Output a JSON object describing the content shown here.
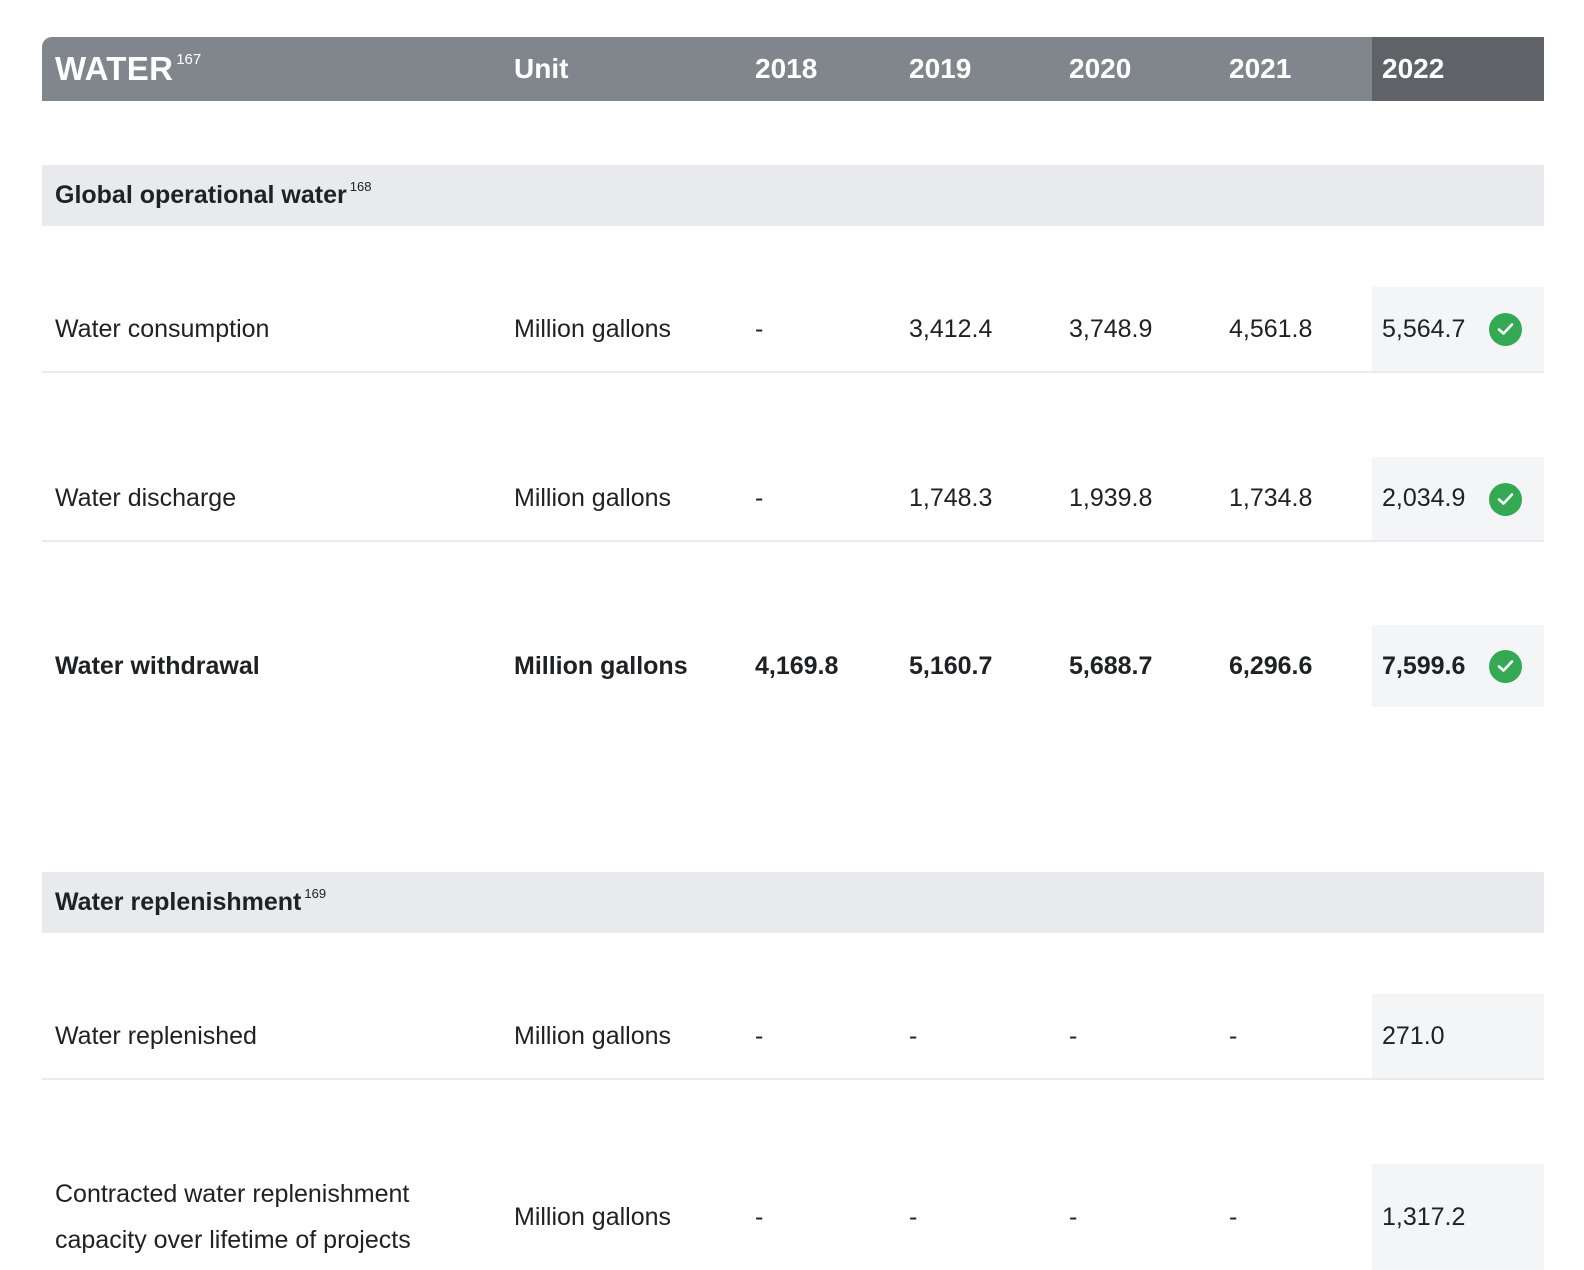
{
  "header": {
    "title": "WATER",
    "title_footnote": "167",
    "unit": "Unit",
    "years": [
      "2018",
      "2019",
      "2020",
      "2021",
      "2022"
    ]
  },
  "sections": [
    {
      "title": "Global operational water",
      "footnote": "168",
      "rows": [
        {
          "metric": "Water consumption",
          "unit": "Million gallons",
          "values": [
            "-",
            "3,412.4",
            "3,748.9",
            "4,561.8",
            "5,564.7"
          ],
          "verified": true,
          "bold": false
        },
        {
          "metric": "Water discharge",
          "unit": "Million gallons",
          "values": [
            "-",
            "1,748.3",
            "1,939.8",
            "1,734.8",
            "2,034.9"
          ],
          "verified": true,
          "bold": false
        },
        {
          "metric": "Water withdrawal",
          "unit": "Million gallons",
          "values": [
            "4,169.8",
            "5,160.7",
            "5,688.7",
            "6,296.6",
            "7,599.6"
          ],
          "verified": true,
          "bold": true
        }
      ]
    },
    {
      "title": "Water replenishment",
      "footnote": "169",
      "rows": [
        {
          "metric": "Water replenished",
          "unit": "Million gallons",
          "values": [
            "-",
            "-",
            "-",
            "-",
            "271.0"
          ],
          "verified": false,
          "bold": false
        },
        {
          "metric_line1": "Contracted water replenishment",
          "metric_line2": "capacity over lifetime of projects",
          "unit": "Million gallons",
          "values": [
            "-",
            "-",
            "-",
            "-",
            "1,317.2"
          ],
          "verified": false,
          "bold": false
        }
      ]
    }
  ],
  "icons": {
    "verified": "check-circle-icon"
  },
  "colors": {
    "header_bg": "#80868b",
    "header_highlight": "#5f6368",
    "section_bg": "#e8eaed",
    "highlight_col": "#f4f5f6",
    "check": "#34a853"
  }
}
